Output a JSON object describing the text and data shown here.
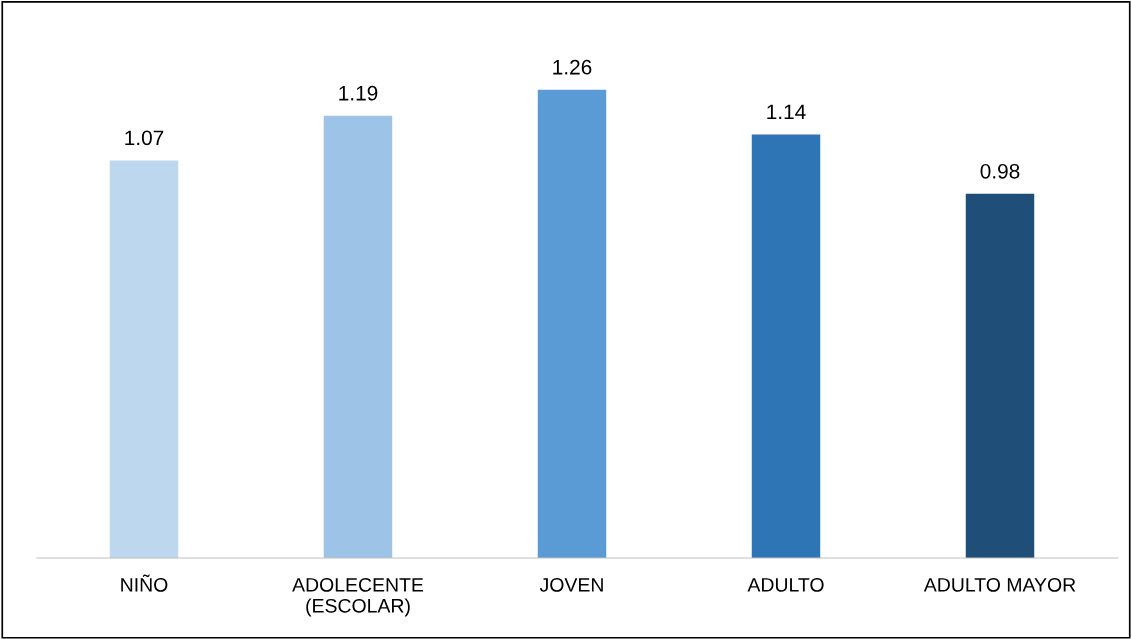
{
  "chart_data": {
    "type": "bar",
    "categories": [
      "NIÑO",
      "ADOLECENTE\n(ESCOLAR)",
      "JOVEN",
      "ADULTO",
      "ADULTO MAYOR"
    ],
    "values": [
      1.07,
      1.19,
      1.26,
      1.14,
      0.98
    ],
    "colors": [
      "#bdd7ee",
      "#9dc3e6",
      "#5b9bd5",
      "#2e75b6",
      "#1f4e79"
    ],
    "data_labels": true,
    "grid": false,
    "legend": false,
    "tick_labels": "x"
  }
}
